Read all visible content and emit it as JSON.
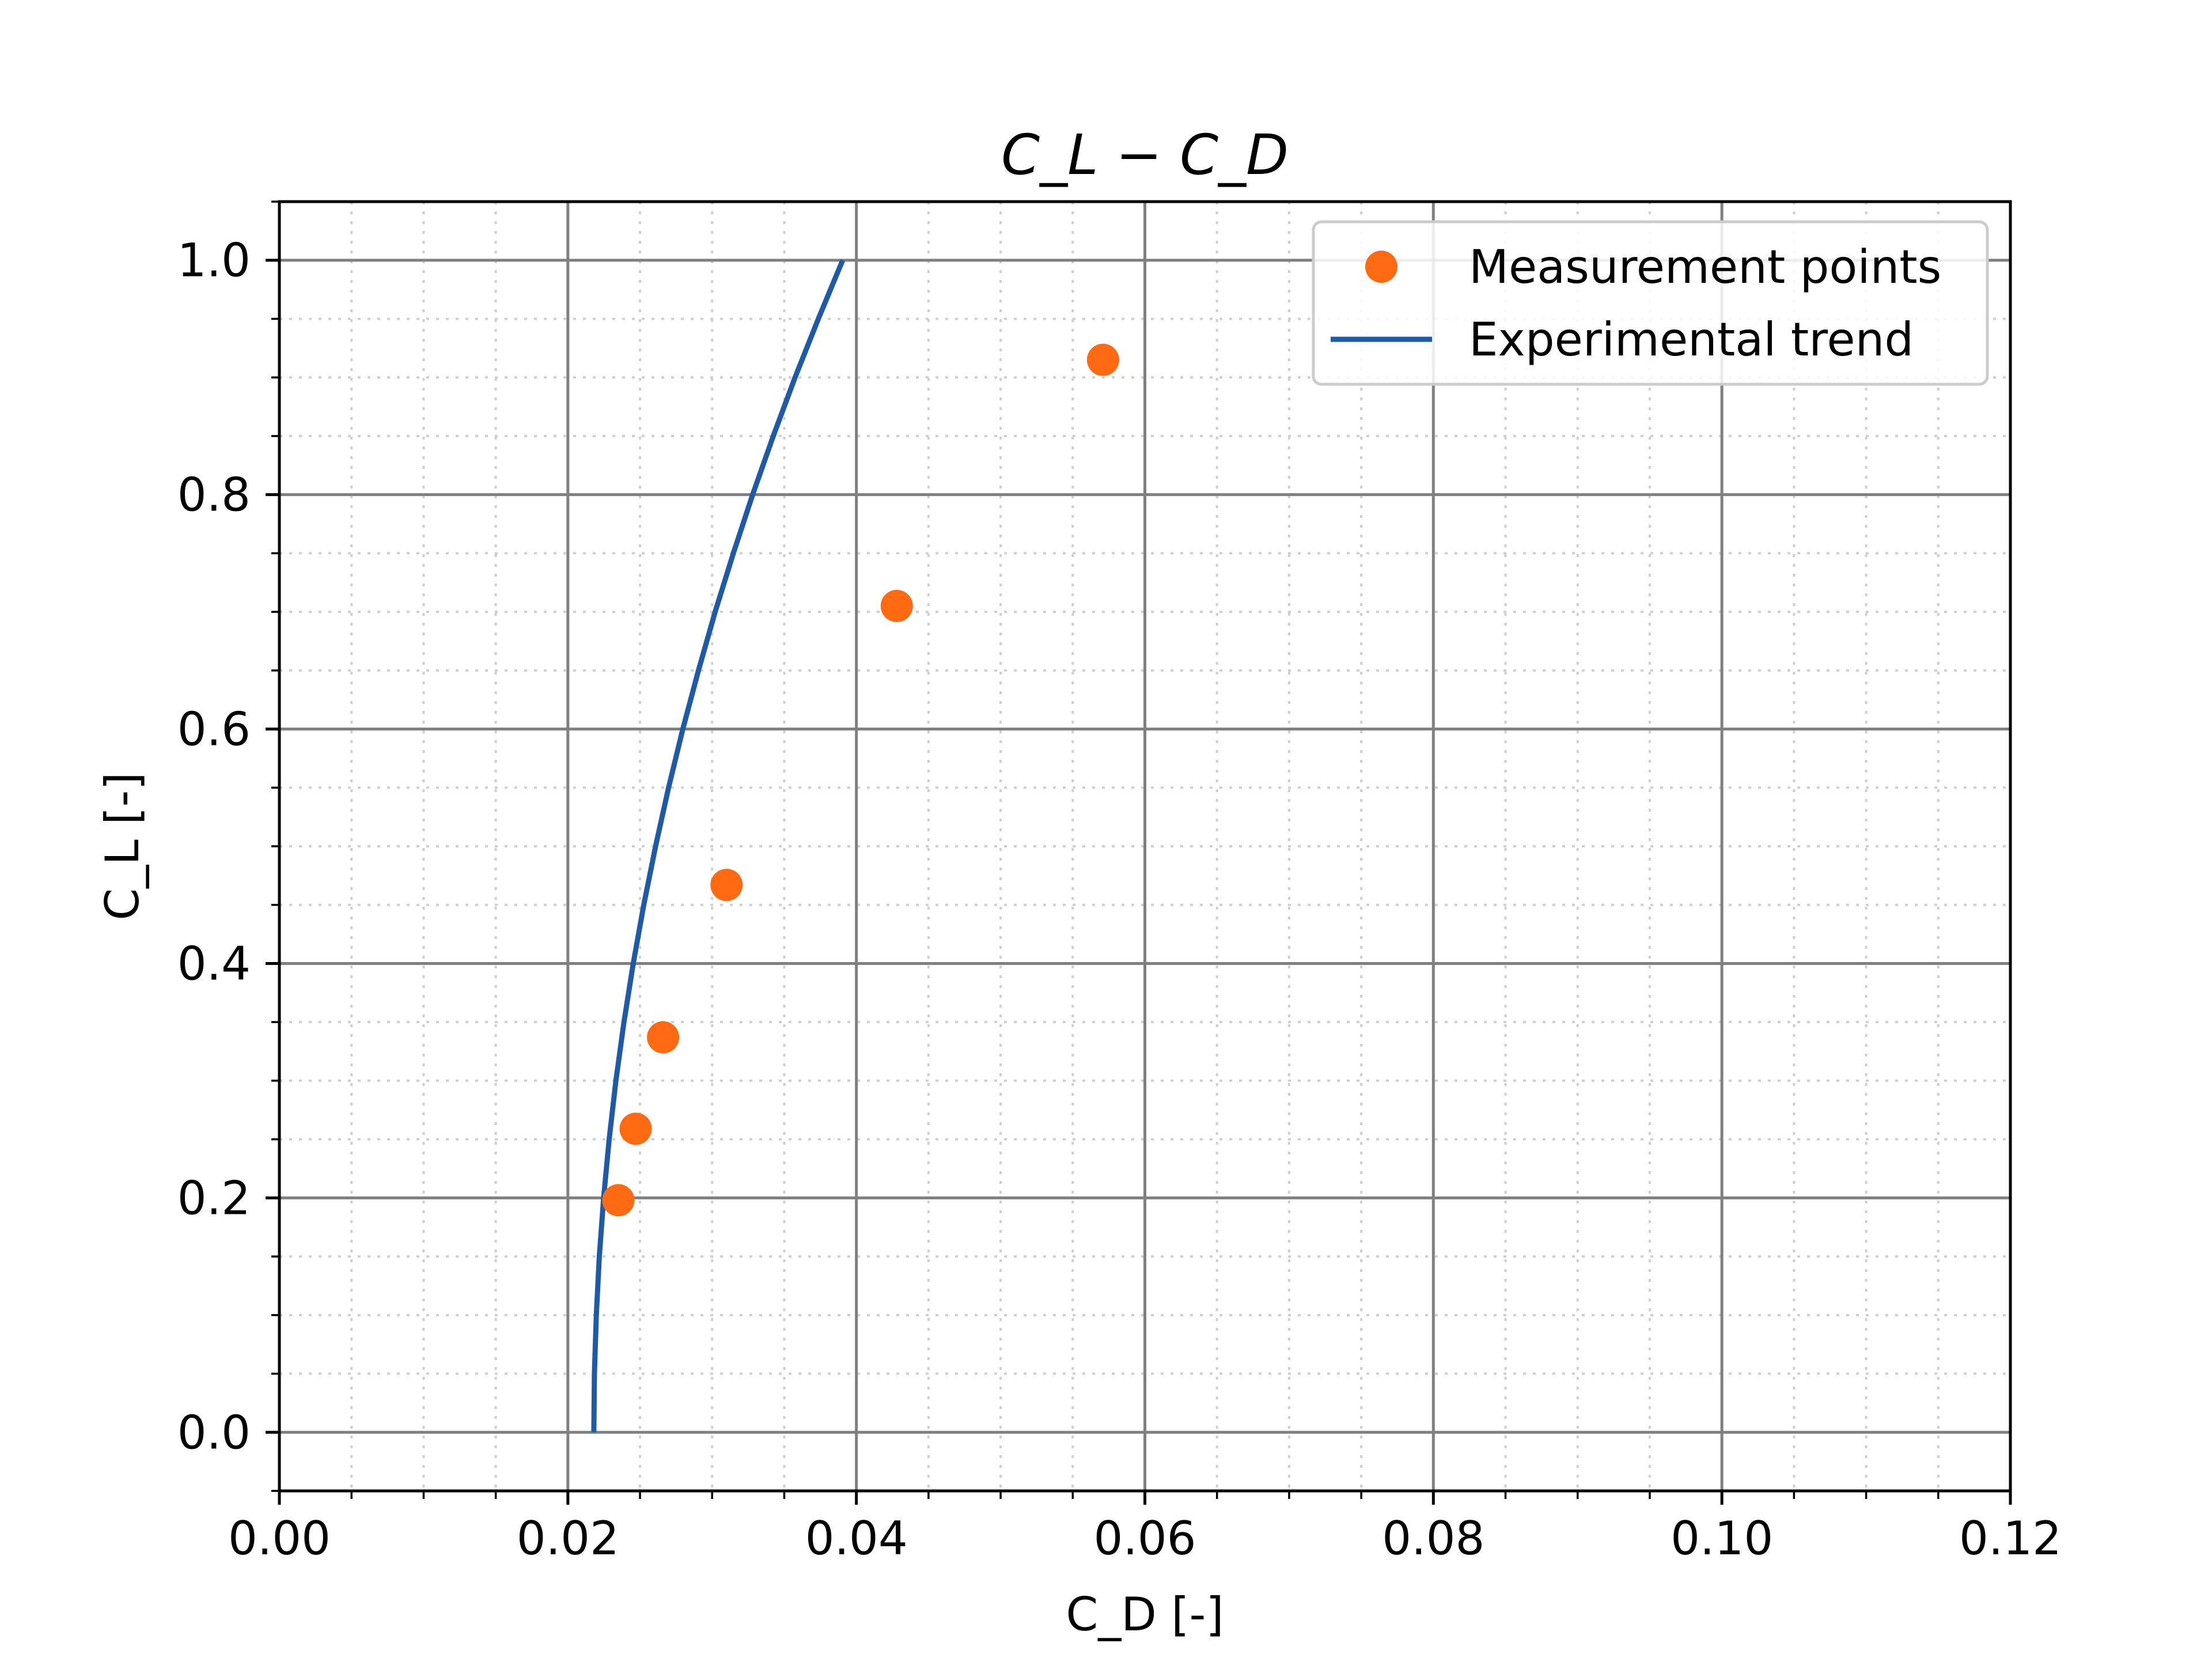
{
  "chart_data": {
    "type": "scatter",
    "title": "C_L − C_D",
    "xlabel": "C_D [-]",
    "ylabel": "C_L [-]",
    "xlim": [
      0.0,
      0.12
    ],
    "ylim": [
      -0.05,
      1.05
    ],
    "xticks": [
      "0.00",
      "0.02",
      "0.04",
      "0.06",
      "0.08",
      "0.10",
      "0.12"
    ],
    "yticks": [
      "0.0",
      "0.2",
      "0.4",
      "0.6",
      "0.8",
      "1.0"
    ],
    "grid": {
      "major": true,
      "minor": true
    },
    "legend": {
      "placement": "top-right",
      "entries": [
        "Measurement points",
        "Experimental trend"
      ]
    },
    "series": [
      {
        "name": "Measurement points",
        "kind": "scatter",
        "color": "#ff6a13",
        "points": [
          {
            "x": 0.0235,
            "y": 0.198
          },
          {
            "x": 0.0247,
            "y": 0.259
          },
          {
            "x": 0.0266,
            "y": 0.337
          },
          {
            "x": 0.031,
            "y": 0.467
          },
          {
            "x": 0.0428,
            "y": 0.705
          },
          {
            "x": 0.0571,
            "y": 0.915
          }
        ]
      },
      {
        "name": "Experimental trend",
        "kind": "line",
        "color": "#1f5aa6",
        "points": [
          {
            "x": 0.0218,
            "y": 0.0
          },
          {
            "x": 0.02184,
            "y": 0.05
          },
          {
            "x": 0.02197,
            "y": 0.1
          },
          {
            "x": 0.02218,
            "y": 0.15
          },
          {
            "x": 0.02248,
            "y": 0.2
          },
          {
            "x": 0.02286,
            "y": 0.25
          },
          {
            "x": 0.02333,
            "y": 0.3
          },
          {
            "x": 0.02389,
            "y": 0.35
          },
          {
            "x": 0.02453,
            "y": 0.4
          },
          {
            "x": 0.02526,
            "y": 0.45
          },
          {
            "x": 0.02608,
            "y": 0.5
          },
          {
            "x": 0.02698,
            "y": 0.55
          },
          {
            "x": 0.02797,
            "y": 0.6
          },
          {
            "x": 0.02905,
            "y": 0.65
          },
          {
            "x": 0.03021,
            "y": 0.7
          },
          {
            "x": 0.03147,
            "y": 0.75
          },
          {
            "x": 0.03281,
            "y": 0.8
          },
          {
            "x": 0.03424,
            "y": 0.85
          },
          {
            "x": 0.03575,
            "y": 0.9
          },
          {
            "x": 0.03736,
            "y": 0.95
          },
          {
            "x": 0.03905,
            "y": 1.0
          }
        ]
      }
    ]
  }
}
